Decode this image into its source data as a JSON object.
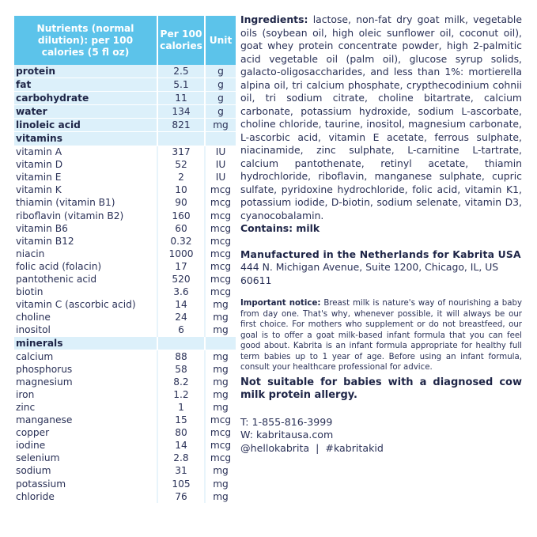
{
  "table": {
    "headers": {
      "nutrient": "Nutrients (normal dilution): per 100 calories (5 fl oz)",
      "value": "Per 100 calories",
      "unit": "Unit"
    },
    "rows": [
      {
        "name": "protein",
        "value": "2.5",
        "unit": "g",
        "style": "main"
      },
      {
        "name": "fat",
        "value": "5.1",
        "unit": "g",
        "style": "main"
      },
      {
        "name": "carbohydrate",
        "value": "11",
        "unit": "g",
        "style": "main"
      },
      {
        "name": "water",
        "value": "134",
        "unit": "g",
        "style": "main"
      },
      {
        "name": "linoleic acid",
        "value": "821",
        "unit": "mg",
        "style": "main"
      },
      {
        "name": "vitamins",
        "value": "",
        "unit": "",
        "style": "section"
      },
      {
        "name": "vitamin A",
        "value": "317",
        "unit": "IU"
      },
      {
        "name": "vitamin D",
        "value": "52",
        "unit": "IU"
      },
      {
        "name": "vitamin E",
        "value": "2",
        "unit": "IU"
      },
      {
        "name": "vitamin K",
        "value": "10",
        "unit": "mcg"
      },
      {
        "name": "thiamin (vitamin B1)",
        "value": "90",
        "unit": "mcg"
      },
      {
        "name": "riboflavin (vitamin B2)",
        "value": "160",
        "unit": "mcg"
      },
      {
        "name": "vitamin B6",
        "value": "60",
        "unit": "mcg"
      },
      {
        "name": "vitamin B12",
        "value": "0.32",
        "unit": "mcg"
      },
      {
        "name": "niacin",
        "value": "1000",
        "unit": "mcg"
      },
      {
        "name": "folic acid (folacin)",
        "value": "17",
        "unit": "mcg"
      },
      {
        "name": "pantothenic acid",
        "value": "520",
        "unit": "mcg"
      },
      {
        "name": "biotin",
        "value": "3.6",
        "unit": "mcg"
      },
      {
        "name": "vitamin C (ascorbic acid)",
        "value": "14",
        "unit": "mg"
      },
      {
        "name": "choline",
        "value": "24",
        "unit": "mg"
      },
      {
        "name": "inositol",
        "value": "6",
        "unit": "mg"
      },
      {
        "name": "minerals",
        "value": "",
        "unit": "",
        "style": "section"
      },
      {
        "name": "calcium",
        "value": "88",
        "unit": "mg"
      },
      {
        "name": "phosphorus",
        "value": "58",
        "unit": "mg"
      },
      {
        "name": "magnesium",
        "value": "8.2",
        "unit": "mg"
      },
      {
        "name": "iron",
        "value": "1.2",
        "unit": "mg"
      },
      {
        "name": "zinc",
        "value": "1",
        "unit": "mg"
      },
      {
        "name": "manganese",
        "value": "15",
        "unit": "mcg"
      },
      {
        "name": "copper",
        "value": "80",
        "unit": "mcg"
      },
      {
        "name": "iodine",
        "value": "14",
        "unit": "mcg"
      },
      {
        "name": "selenium",
        "value": "2.8",
        "unit": "mcg"
      },
      {
        "name": "sodium",
        "value": "31",
        "unit": "mg"
      },
      {
        "name": "potassium",
        "value": "105",
        "unit": "mg"
      },
      {
        "name": "chloride",
        "value": "76",
        "unit": "mg"
      }
    ]
  },
  "ingredients": {
    "label": "Ingredients:",
    "text": " lactose, non-fat dry goat milk, vegetable oils (soybean oil, high oleic sunflower oil, coconut oil), goat whey protein concentrate powder, high 2-palmitic acid vegetable oil (palm oil), glucose syrup solids, galacto-oligosaccharides, and less than 1%: mortierella alpina oil, tri calcium phosphate, crypthecodinium cohnii oil, tri sodium citrate, choline bitartrate, calcium carbonate, potassium hydroxide, sodium L-ascorbate, choline chloride, taurine, inositol, magnesium carbonate, L-ascorbic acid, vitamin E acetate, ferrous sulphate, niacinamide, zinc sulphate, L-carnitine L-tartrate, calcium pantothenate, retinyl acetate, thiamin hydrochloride, riboflavin, manganese sulphate, cupric sulfate, pyridoxine hydrochloride, folic acid, vitamin K1, potassium iodide, D-biotin, sodium selenate, vitamin D3, cyanocobalamin.",
    "contains": "Contains: milk"
  },
  "manufacturer": {
    "line": "Manufactured in the Netherlands for Kabrita USA",
    "address": "444 N. Michigan Avenue, Suite 1200, Chicago, IL, US 60611"
  },
  "notice": {
    "label": "Important notice:",
    "text": " Breast milk is nature's way of nourishing a baby from day one. That's why, whenever possible, it will always be our first choice. For mothers who supplement or do not breastfeed, our goal is to offer a goat milk-based infant formula that you can feel good about. Kabrita is an infant formula appropriate for healthy full term babies up to 1 year of age. Before using an infant formula, consult your healthcare professional for advice."
  },
  "warning": "Not suitable for babies with a diagnosed cow milk protein allergy.",
  "contact": {
    "phone": "T: 1-855-816-3999",
    "web": "W: kabritausa.com",
    "social": "@hellokabrita  |  #kabritakid"
  }
}
